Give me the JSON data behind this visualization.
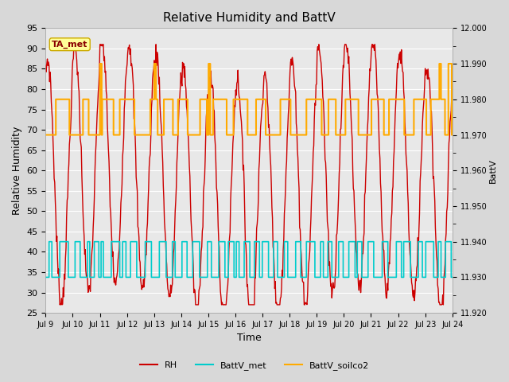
{
  "title": "Relative Humidity and BattV",
  "ylabel_left": "Relative Humidity",
  "ylabel_right": "BattV",
  "xlabel": "Time",
  "annotation_text": "TA_met",
  "ylim_left": [
    25,
    95
  ],
  "ylim_right": [
    11.92,
    12.0
  ],
  "yticks_left": [
    25,
    30,
    35,
    40,
    45,
    50,
    55,
    60,
    65,
    70,
    75,
    80,
    85,
    90,
    95
  ],
  "yticks_right": [
    11.92,
    11.93,
    11.94,
    11.95,
    11.96,
    11.97,
    11.98,
    11.99,
    12.0
  ],
  "xtick_labels": [
    "Jul 9",
    "Jul 10",
    "Jul 11",
    "Jul 12",
    "Jul 13",
    "Jul 14",
    "Jul 15",
    "Jul 16",
    "Jul 17",
    "Jul 18",
    "Jul 19",
    "Jul 20",
    "Jul 21",
    "Jul 22",
    "Jul 23",
    "Jul 24"
  ],
  "colors": {
    "RH": "#cc0000",
    "BattV_met": "#00cccc",
    "BattV_soilco2": "#ffaa00",
    "background": "#d8d8d8",
    "plot_bg": "#e8e8e8",
    "annotation_bg": "#ffff99",
    "annotation_border": "#ccaa00",
    "annotation_text": "#880000"
  },
  "legend": {
    "RH": "RH",
    "BattV_met": "BattV_met",
    "BattV_soilco2": "BattV_soilco2"
  }
}
